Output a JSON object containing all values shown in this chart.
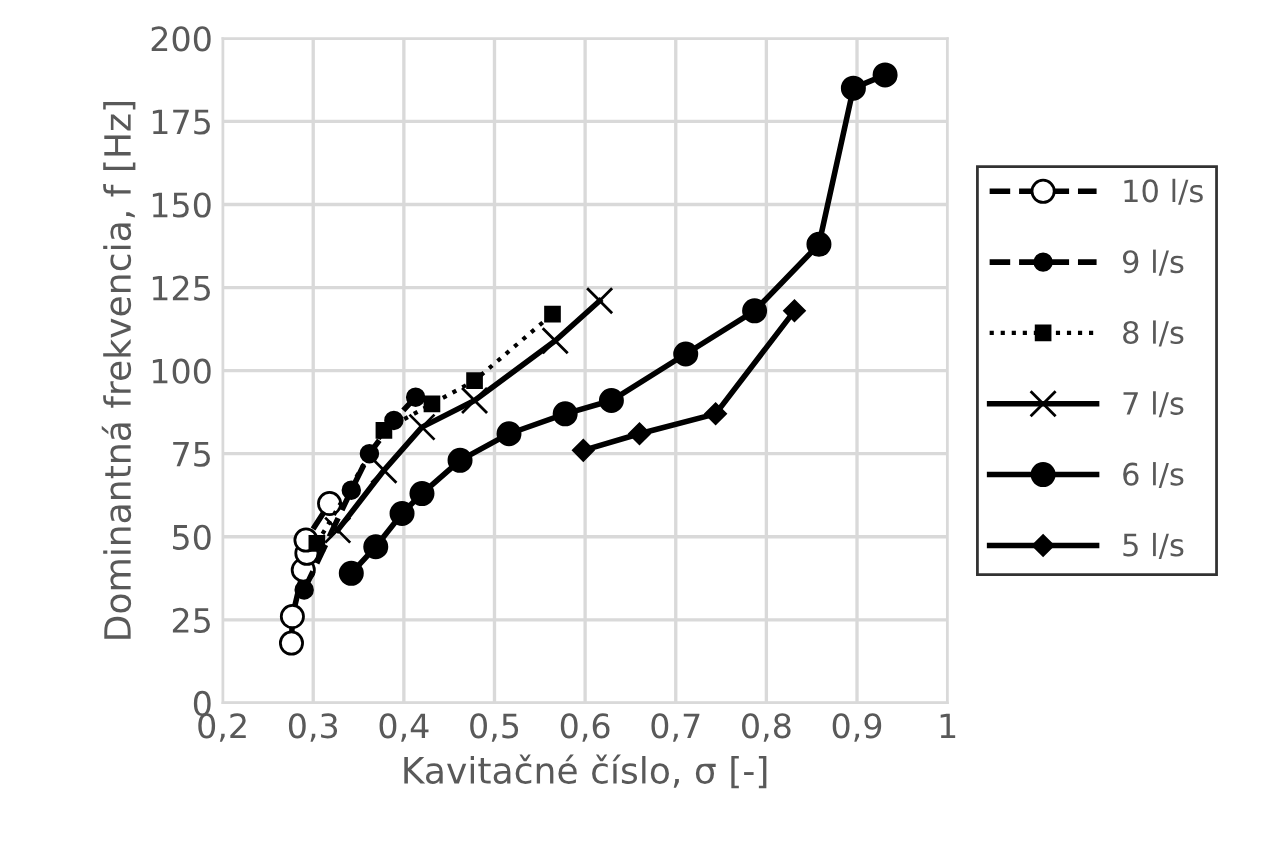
{
  "chart_data": {
    "type": "line",
    "xlabel": "Kavitačné číslo, σ [-]",
    "ylabel": "Dominantná frekvencia, f [Hz]",
    "xlim": [
      0.2,
      1
    ],
    "xticks": [
      {
        "value": 0.2,
        "label": "0,2"
      },
      {
        "value": 0.3,
        "label": "0,3"
      },
      {
        "value": 0.4,
        "label": "0,4"
      },
      {
        "value": 0.5,
        "label": "0,5"
      },
      {
        "value": 0.6,
        "label": "0,6"
      },
      {
        "value": 0.7,
        "label": "0,7"
      },
      {
        "value": 0.8,
        "label": "0,8"
      },
      {
        "value": 0.9,
        "label": "0,9"
      },
      {
        "value": 1,
        "label": "1"
      }
    ],
    "ylim": [
      0,
      200
    ],
    "yticks": [
      0,
      25,
      50,
      75,
      100,
      125,
      150,
      175,
      200
    ],
    "grid": true,
    "legend": "right",
    "series": [
      {
        "name": "10 l/s",
        "color": "#000000",
        "marker": "circle",
        "line_style": "dashed",
        "x": [
          0.276,
          0.277,
          0.289,
          0.293,
          0.292,
          0.318
        ],
        "values": [
          18,
          26,
          40,
          45,
          49,
          60
        ]
      },
      {
        "name": "9 l/s",
        "color": "#000000",
        "marker": "circle",
        "line_style": "dashed",
        "x": [
          0.29,
          0.342,
          0.362,
          0.389,
          0.413
        ],
        "values": [
          34,
          64,
          75,
          85,
          92
        ]
      },
      {
        "name": "8 l/s",
        "color": "#000000",
        "marker": "square",
        "line_style": "dotted",
        "x": [
          0.304,
          0.378,
          0.431,
          0.478,
          0.564
        ],
        "values": [
          48,
          82,
          90,
          97,
          117
        ]
      },
      {
        "name": "7 l/s",
        "color": "#000000",
        "marker": "cross",
        "line_style": "solid",
        "x": [
          0.327,
          0.378,
          0.42,
          0.478,
          0.567,
          0.616
        ],
        "values": [
          52,
          70,
          83,
          91,
          109,
          121
        ]
      },
      {
        "name": "6 l/s",
        "color": "#000000",
        "marker": "circle",
        "line_style": "solid",
        "x": [
          0.342,
          0.369,
          0.398,
          0.42,
          0.462,
          0.516,
          0.578,
          0.629,
          0.711,
          0.787,
          0.858,
          0.896,
          0.931
        ],
        "values": [
          39,
          47,
          57,
          63,
          73,
          81,
          87,
          91,
          105,
          118,
          138,
          185,
          189
        ]
      },
      {
        "name": "5 l/s",
        "color": "#000000",
        "marker": "diamond",
        "line_style": "solid",
        "x": [
          0.598,
          0.66,
          0.744,
          0.831
        ],
        "values": [
          76,
          81,
          87,
          118
        ]
      }
    ]
  }
}
